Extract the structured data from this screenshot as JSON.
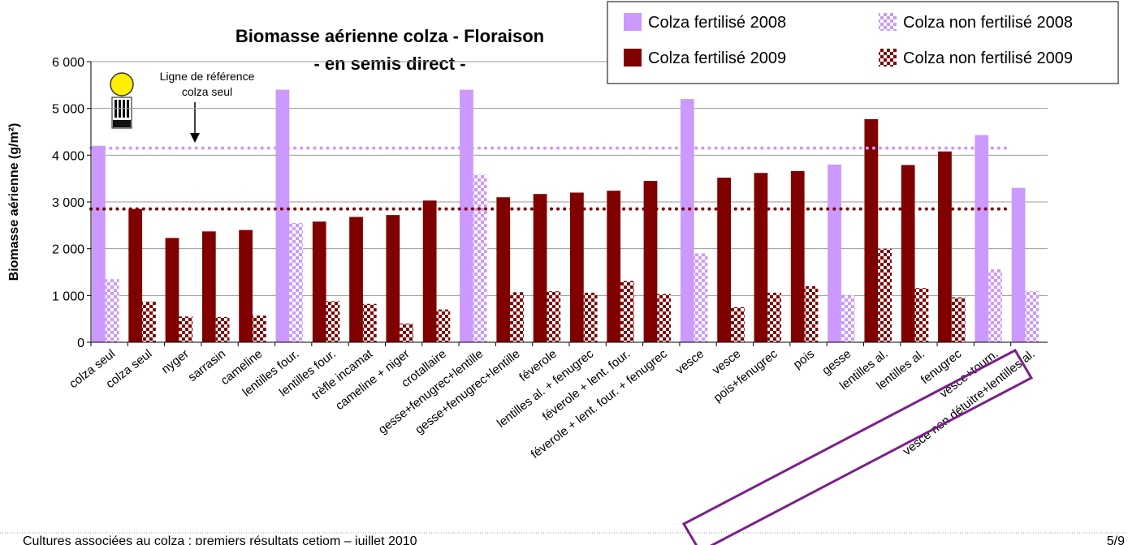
{
  "chart_data": {
    "type": "bar",
    "title_lines": [
      "Biomasse aérienne colza - Floraison",
      "- en semis direct -"
    ],
    "y_label": "Biomasse aérienne (g/m²)",
    "annotation": [
      "Ligne de référence",
      "colza seul"
    ],
    "categories": [
      "colza seul",
      "colza seul",
      "nyger",
      "sarrasin",
      "cameline",
      "lentilles four.",
      "lentilles four.",
      "trèfle incamat",
      "cameline + niger",
      "crotallaire",
      "gesse+fenugrec+lentille",
      "gesse+fenugrec+lentille",
      "féverole",
      "lentilles al. + fenugrec",
      "féverole + lent. four.",
      "féverole + lent. four. + fenugrec",
      "vesce",
      "vesce",
      "pois+fenugrec",
      "pois",
      "gesse",
      "lentilles al.",
      "lentilles al.",
      "fenugrec",
      "vesce+tourn.",
      "vesce non détuitre+lentilles al."
    ],
    "series": [
      {
        "name": "Colza fertilisé 2008",
        "color": "#cc99ff",
        "pattern": "solid",
        "slot": 0,
        "values": [
          4200,
          null,
          null,
          null,
          null,
          5400,
          null,
          null,
          null,
          null,
          5400,
          null,
          null,
          null,
          null,
          null,
          5200,
          null,
          null,
          null,
          3800,
          null,
          null,
          null,
          4430,
          3300
        ]
      },
      {
        "name": "Colza fertilisé 2009",
        "color": "#800000",
        "pattern": "solid",
        "slot": 0,
        "values": [
          null,
          2850,
          2230,
          2370,
          2400,
          null,
          2580,
          2680,
          2720,
          3030,
          null,
          3100,
          3170,
          3200,
          3240,
          3450,
          null,
          3520,
          3620,
          3660,
          null,
          4770,
          3790,
          4080,
          null,
          null
        ]
      },
      {
        "name": "Colza non fertilisé 2008",
        "color": "#cc99ff",
        "pattern": "checkered",
        "slot": 1,
        "values": [
          1350,
          null,
          null,
          null,
          null,
          2550,
          null,
          null,
          null,
          null,
          3580,
          null,
          null,
          null,
          null,
          null,
          1900,
          null,
          null,
          null,
          1000,
          null,
          null,
          null,
          1560,
          1090
        ]
      },
      {
        "name": "Colza non fertilisé 2009",
        "color": "#800000",
        "pattern": "checkered",
        "slot": 1,
        "values": [
          null,
          870,
          550,
          540,
          570,
          null,
          880,
          820,
          400,
          700,
          null,
          1070,
          1090,
          1060,
          1310,
          1030,
          null,
          750,
          1060,
          1200,
          null,
          2000,
          1160,
          960,
          null,
          null
        ]
      }
    ],
    "reference_lines": [
      {
        "value": 4150,
        "color": "#cc99ff"
      },
      {
        "value": 2850,
        "color": "#800000"
      }
    ],
    "ylim": [
      0,
      6000
    ],
    "yticks": [
      0,
      {
        "value": 1000,
        "label": "1 000"
      },
      {
        "value": 2000,
        "label": "2 000"
      },
      {
        "value": 3000,
        "label": "3 000"
      },
      {
        "value": 4000,
        "label": "4 000"
      },
      {
        "value": 5000,
        "label": "5 000"
      },
      {
        "value": 6000,
        "label": "6 000"
      }
    ],
    "grid": true,
    "footer": {
      "left": "Cultures associées au colza : premiers résultats cetiom – juillet 2010",
      "right": "5/9"
    }
  }
}
